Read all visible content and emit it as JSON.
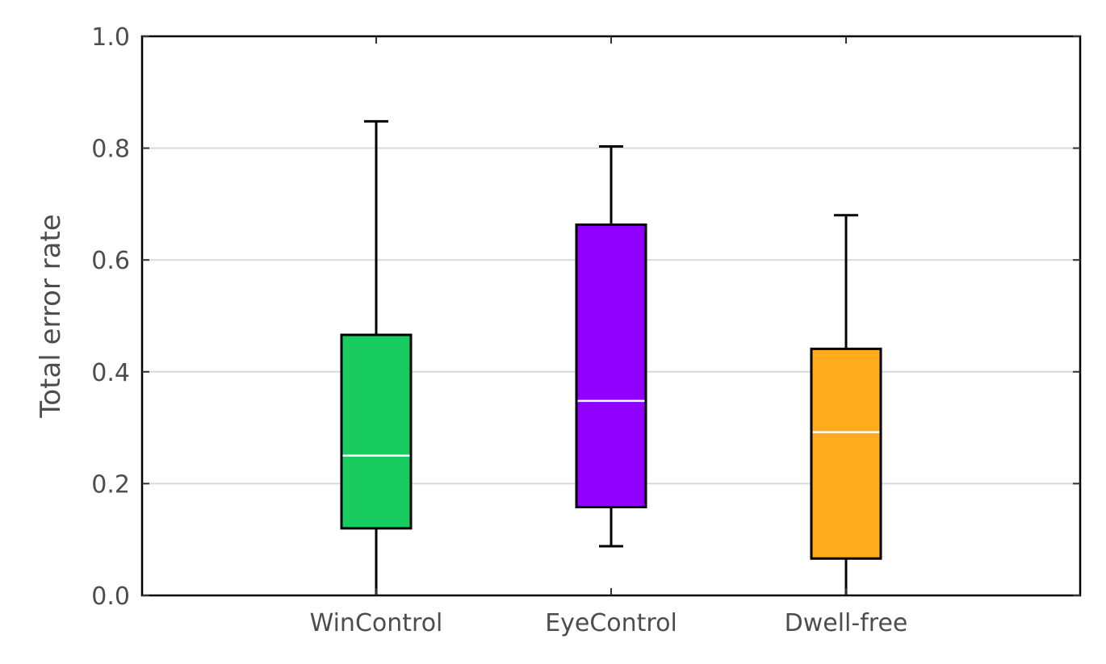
{
  "chart_data": {
    "type": "box",
    "ylabel": "Total error rate",
    "ylim": [
      0.0,
      1.0
    ],
    "yticks": [
      "0.0",
      "0.2",
      "0.4",
      "0.6",
      "0.8",
      "1.0"
    ],
    "grid": true,
    "categories": [
      "WinControl",
      "EyeControl",
      "Dwell-free"
    ],
    "boxes": [
      {
        "label": "WinControl",
        "min": 0.0,
        "q1": 0.12,
        "median": 0.25,
        "q3": 0.466,
        "max": 0.848,
        "color": "#18cc60"
      },
      {
        "label": "EyeControl",
        "min": 0.088,
        "q1": 0.158,
        "median": 0.348,
        "q3": 0.663,
        "max": 0.803,
        "color": "#9100ff"
      },
      {
        "label": "Dwell-free",
        "min": 0.0,
        "q1": 0.066,
        "median": 0.292,
        "q3": 0.441,
        "max": 0.68,
        "color": "#ffab1c"
      }
    ]
  }
}
